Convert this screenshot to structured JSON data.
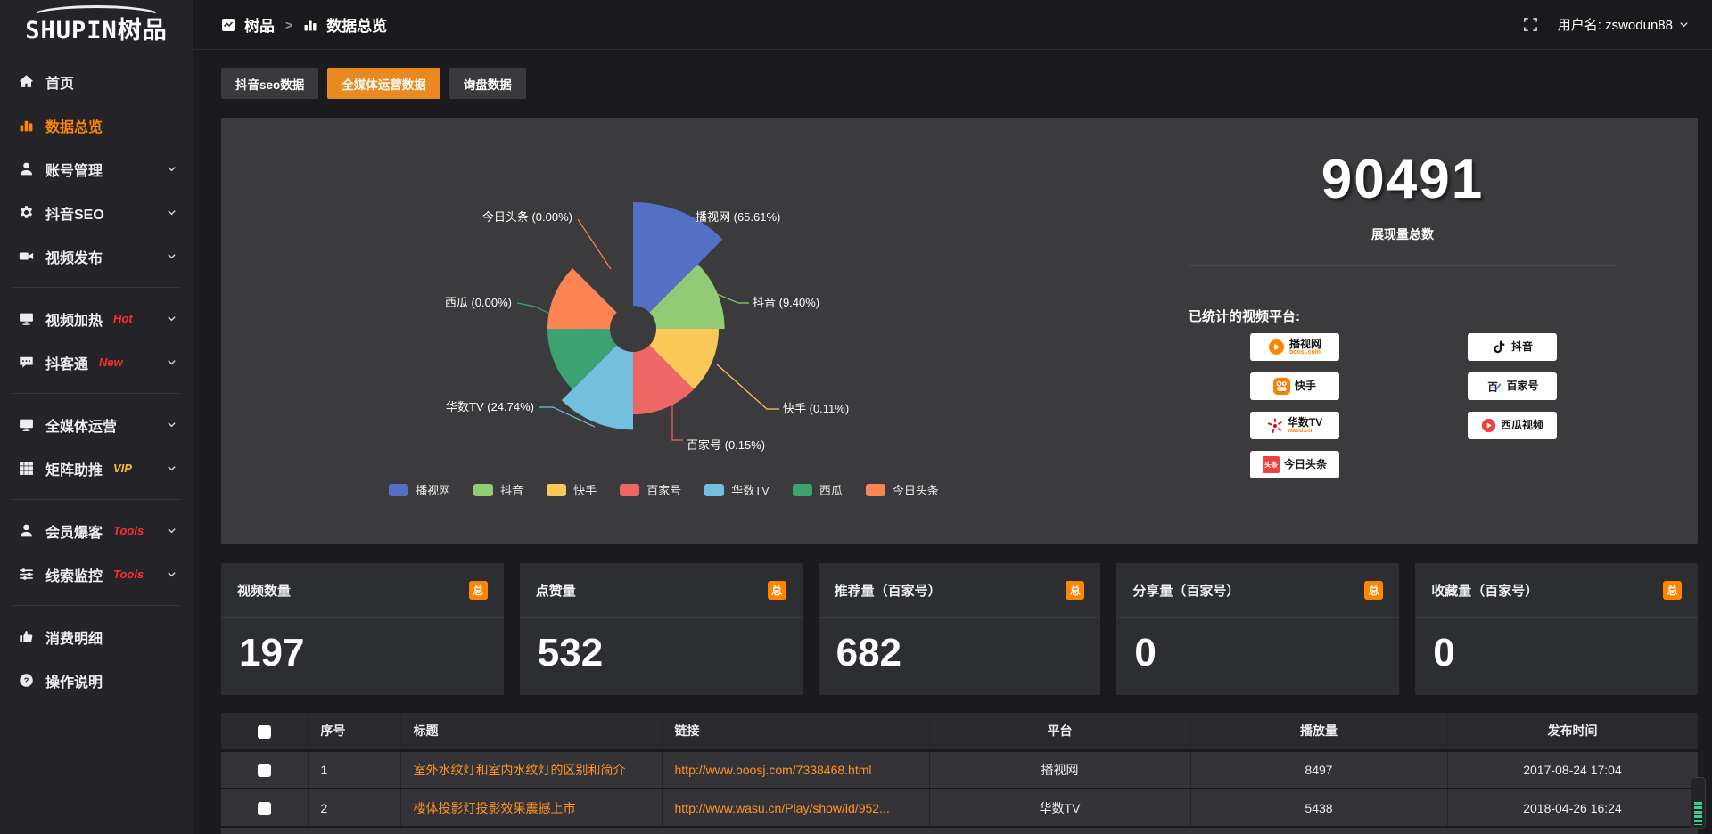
{
  "topbar": {
    "breadcrumb": {
      "root": "树品",
      "separator": ">",
      "current": "数据总览"
    },
    "username": "用户名: zswodun88"
  },
  "sidebar": {
    "logo_latin": "SHUPIN",
    "logo_cn": "树品",
    "items": [
      {
        "icon": "home-icon",
        "label": "首页"
      },
      {
        "icon": "bar-chart-icon",
        "label": "数据总览",
        "active": true
      },
      {
        "icon": "user-icon",
        "label": "账号管理",
        "chevron": true
      },
      {
        "icon": "gear-icon",
        "label": "抖音SEO",
        "chevron": true
      },
      {
        "icon": "video-camera-icon",
        "label": "视频发布",
        "chevron": true,
        "divider_after": true
      },
      {
        "icon": "heat-monitor-icon",
        "label": "视频加热",
        "badge": "Hot",
        "badge_color": "#ff2e2e",
        "chevron": true
      },
      {
        "icon": "chat-bubble-icon",
        "label": "抖客通",
        "badge": "New",
        "badge_color": "#ff2e2e",
        "chevron": true,
        "divider_after": true
      },
      {
        "icon": "monitor-icon",
        "label": "全媒体运营",
        "chevron": true
      },
      {
        "icon": "grid-icon",
        "label": "矩阵助推",
        "badge": "VIP",
        "badge_color": "#f3c231",
        "chevron": true,
        "divider_after": true
      },
      {
        "icon": "member-icon",
        "label": "会员爆客",
        "badge": "Tools",
        "badge_color": "#ff2e2e",
        "chevron": true
      },
      {
        "icon": "sliders-icon",
        "label": "线索监控",
        "badge": "Tools",
        "badge_color": "#ff2e2e",
        "chevron": true,
        "divider_after": true
      },
      {
        "icon": "thumb-icon",
        "label": "消费明细"
      },
      {
        "icon": "help-icon",
        "label": "操作说明"
      }
    ]
  },
  "tabs": [
    {
      "label": "抖音seo数据",
      "active": false
    },
    {
      "label": "全媒体运营数据",
      "active": true
    },
    {
      "label": "询盘数据",
      "active": false
    }
  ],
  "chart_data": {
    "type": "pie",
    "variant": "nightingale-rose",
    "legend_position": "bottom",
    "items": [
      {
        "name": "播视网",
        "percent": 65.61,
        "color": "#5470c6"
      },
      {
        "name": "抖音",
        "percent": 9.4,
        "color": "#91cc75"
      },
      {
        "name": "快手",
        "percent": 0.11,
        "color": "#fac858"
      },
      {
        "name": "百家号",
        "percent": 0.15,
        "color": "#ee6666"
      },
      {
        "name": "华数TV",
        "percent": 24.74,
        "color": "#73c0de"
      },
      {
        "name": "西瓜",
        "percent": 0.0,
        "color": "#3ba272"
      },
      {
        "name": "今日头条",
        "percent": 0.0,
        "color": "#fc8452"
      }
    ]
  },
  "summary": {
    "total_value": "90491",
    "total_label": "展现量总数",
    "platforms_label": "已统计的视频平台:",
    "platform_badges_left": [
      {
        "icon": "boosj-logo",
        "name": "播视网",
        "sub": "boosj.com"
      },
      {
        "icon": "kuaishou-logo",
        "name": "快手",
        "sub": ""
      },
      {
        "icon": "wasu-logo",
        "name": "华数TV",
        "sub": "wasu.cn"
      },
      {
        "icon": "toutiao-logo",
        "name": "今日头条",
        "sub": ""
      }
    ],
    "platform_badges_right": [
      {
        "icon": "douyin-logo",
        "name": "抖音",
        "sub": ""
      },
      {
        "icon": "baijiahao-logo",
        "name": "百家号",
        "sub": ""
      },
      {
        "icon": "xigua-logo",
        "name": "西瓜视频",
        "sub": ""
      }
    ]
  },
  "stat_cards": [
    {
      "label": "视频数量",
      "badge": "总",
      "value": "197"
    },
    {
      "label": "点赞量",
      "badge": "总",
      "value": "532"
    },
    {
      "label": "推荐量（百家号）",
      "badge": "总",
      "value": "682"
    },
    {
      "label": "分享量（百家号）",
      "badge": "总",
      "value": "0"
    },
    {
      "label": "收藏量（百家号）",
      "badge": "总",
      "value": "0"
    }
  ],
  "table": {
    "headers": [
      "序号",
      "标题",
      "链接",
      "平台",
      "播放量",
      "发布时间"
    ],
    "rows": [
      {
        "index": "1",
        "title": "室外水纹灯和室内水纹灯的区别和简介",
        "link": "http://www.boosj.com/7338468.html",
        "platform": "播视网",
        "views": "8497",
        "time": "2017-08-24 17:04"
      },
      {
        "index": "2",
        "title": "楼体投影灯投影效果震撼上市",
        "link": "http://www.wasu.cn/Play/show/id/952...",
        "platform": "华数TV",
        "views": "5438",
        "time": "2018-04-26 16:24"
      }
    ]
  },
  "colors": {
    "accent_orange": "#e98a20",
    "badge_orange": "#ff8400",
    "link_orange": "#ff9226",
    "sidebar_active": "#ff8400"
  }
}
